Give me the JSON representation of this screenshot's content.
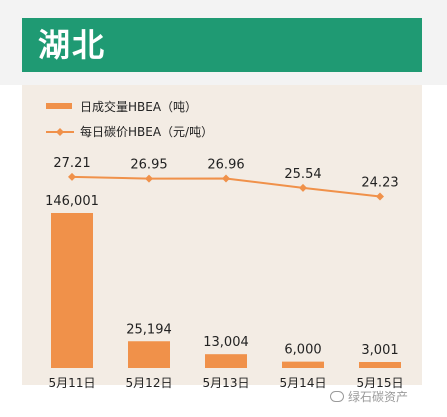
{
  "header": {
    "title": "湖北"
  },
  "watermark": {
    "text": "绿石碳资产"
  },
  "colors": {
    "banner": "#1f9a73",
    "bar": "#f0914a",
    "line": "#f0914a",
    "plot_bg": "#f3ece4"
  },
  "chart_data": {
    "type": "bar",
    "categories": [
      "5月11日",
      "5月12日",
      "5月13日",
      "5月14日",
      "5月15日"
    ],
    "series": [
      {
        "name": "日成交量HBEA（吨）",
        "type": "bar",
        "values": [
          146001,
          25194,
          13004,
          6000,
          3001
        ],
        "labels": [
          "146,001",
          "25,194",
          "13,004",
          "6,000",
          "3,001"
        ]
      },
      {
        "name": "每日碳价HBEA（元/吨）",
        "type": "line",
        "values": [
          27.21,
          26.95,
          26.96,
          25.54,
          24.23
        ],
        "labels": [
          "27.21",
          "26.95",
          "26.96",
          "25.54",
          "24.23"
        ]
      }
    ],
    "legend": "top-left",
    "grid": false
  }
}
